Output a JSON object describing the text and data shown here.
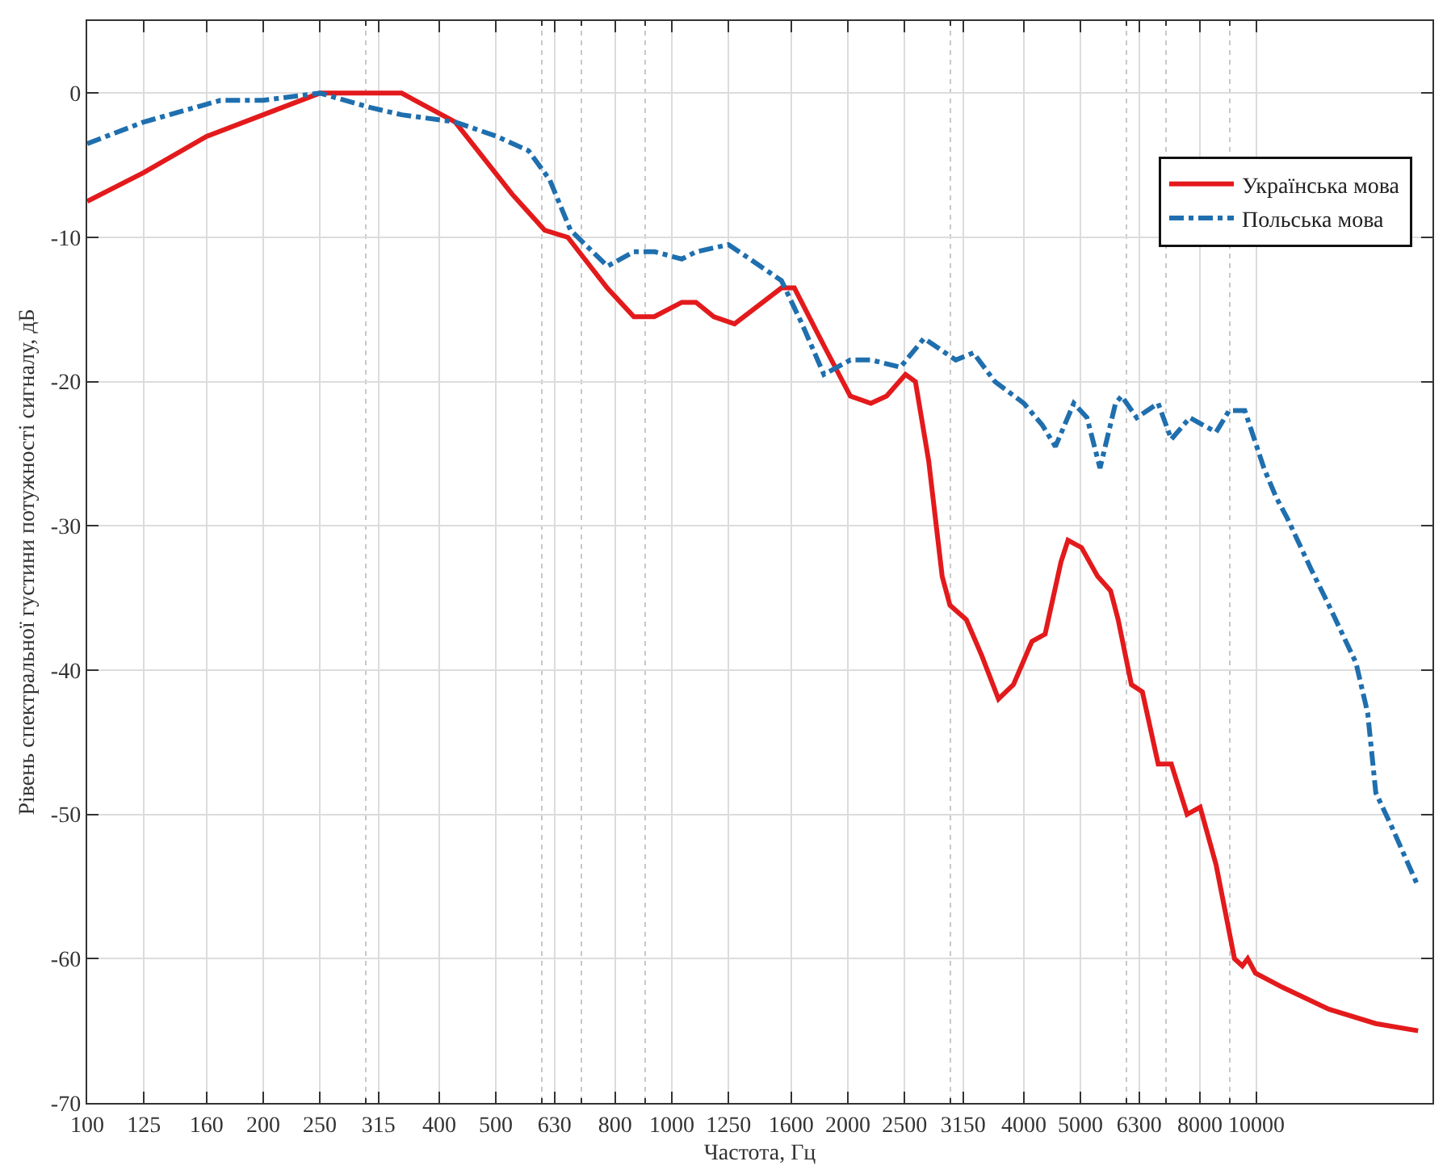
{
  "chart_data": {
    "type": "line",
    "xlabel": "Частота, Гц",
    "ylabel": "Рівень спектральної густини потужності сигналу, дБ",
    "log": "x",
    "grid": true,
    "legend": "top right",
    "xlim": [
      100,
      20000
    ],
    "ylim": [
      -70,
      5
    ],
    "xticks": [
      100,
      125,
      160,
      200,
      250,
      {
        "value": 300,
        "label": null
      },
      315,
      400,
      500,
      {
        "value": 600,
        "label": null
      },
      630,
      {
        "value": 700,
        "label": null
      },
      800,
      {
        "value": 900,
        "label": null
      },
      1000,
      1250,
      1600,
      2000,
      2500,
      {
        "value": 3000,
        "label": null
      },
      3150,
      4000,
      5000,
      {
        "value": 6000,
        "label": null
      },
      6300,
      {
        "value": 7000,
        "label": null
      },
      8000,
      {
        "value": 9000,
        "label": null
      },
      10000
    ],
    "yticks": [
      -70,
      -60,
      -50,
      -40,
      -30,
      -20,
      -10,
      0
    ],
    "series": [
      {
        "name": "Українська мова",
        "color": "#e31a1c",
        "line_style": "solid",
        "x": [
          100,
          125,
          160,
          200,
          250,
          345,
          426,
          533,
          606,
          664,
          775,
          861,
          933,
          1040,
          1100,
          1180,
          1280,
          1540,
          1620,
          1820,
          2020,
          2190,
          2330,
          2510,
          2610,
          2750,
          2900,
          2990,
          3190,
          3390,
          3620,
          3840,
          4130,
          4350,
          4630,
          4760,
          5020,
          5350,
          5630,
          5800,
          6110,
          6380,
          6790,
          7150,
          7610,
          8010,
          8530,
          9170,
          9460,
          9660,
          9960,
          11100,
          13300,
          16000,
          18900
        ],
        "values": [
          -7.5,
          -5.5,
          -3,
          -1.5,
          0,
          0,
          -2,
          -7,
          -9.5,
          -10,
          -13.5,
          -15.5,
          -15.5,
          -14.5,
          -14.5,
          -15.5,
          -16,
          -13.5,
          -13.5,
          -17.5,
          -21,
          -21.5,
          -21,
          -19.5,
          -20,
          -25.5,
          -33.5,
          -35.5,
          -36.5,
          -39,
          -42,
          -41,
          -38,
          -37.5,
          -32.5,
          -31,
          -31.5,
          -33.5,
          -34.5,
          -36.5,
          -41,
          -41.5,
          -46.5,
          -46.5,
          -50,
          -49.5,
          -53.5,
          -60,
          -60.5,
          -60,
          -61,
          -62,
          -63.5,
          -64.5,
          -65
        ]
      },
      {
        "name": "Польська мова",
        "color": "#1f6fae",
        "line_style": "dashdot",
        "x": [
          100,
          125,
          169,
          200,
          250,
          305,
          345,
          426,
          502,
          569,
          618,
          671,
          776,
          861,
          935,
          1040,
          1100,
          1250,
          1360,
          1540,
          1670,
          1820,
          2020,
          2190,
          2460,
          2700,
          3060,
          3280,
          3570,
          4000,
          4300,
          4530,
          4870,
          5130,
          5400,
          5740,
          5880,
          6240,
          6790,
          7150,
          7690,
          8100,
          8530,
          8980,
          9550,
          10300,
          10800,
          11300,
          12400,
          13300,
          14800,
          15500,
          16000,
          17100,
          18900
        ],
        "values": [
          -3.5,
          -2,
          -0.5,
          -0.5,
          0,
          -1,
          -1.5,
          -2,
          -3,
          -4,
          -6,
          -9.5,
          -12,
          -11,
          -11,
          -11.5,
          -11,
          -10.5,
          -11.5,
          -13,
          -16,
          -19.5,
          -18.5,
          -18.5,
          -19,
          -17,
          -18.5,
          -18,
          -20,
          -21.5,
          -23,
          -24.5,
          -21.5,
          -22.5,
          -26,
          -21.5,
          -21,
          -22.5,
          -21.5,
          -24,
          -22.5,
          -23,
          -23.5,
          -22,
          -22,
          -26,
          -28,
          -29.5,
          -33,
          -35.5,
          -39.5,
          -43,
          -48.5,
          -51,
          -55
        ]
      }
    ]
  }
}
